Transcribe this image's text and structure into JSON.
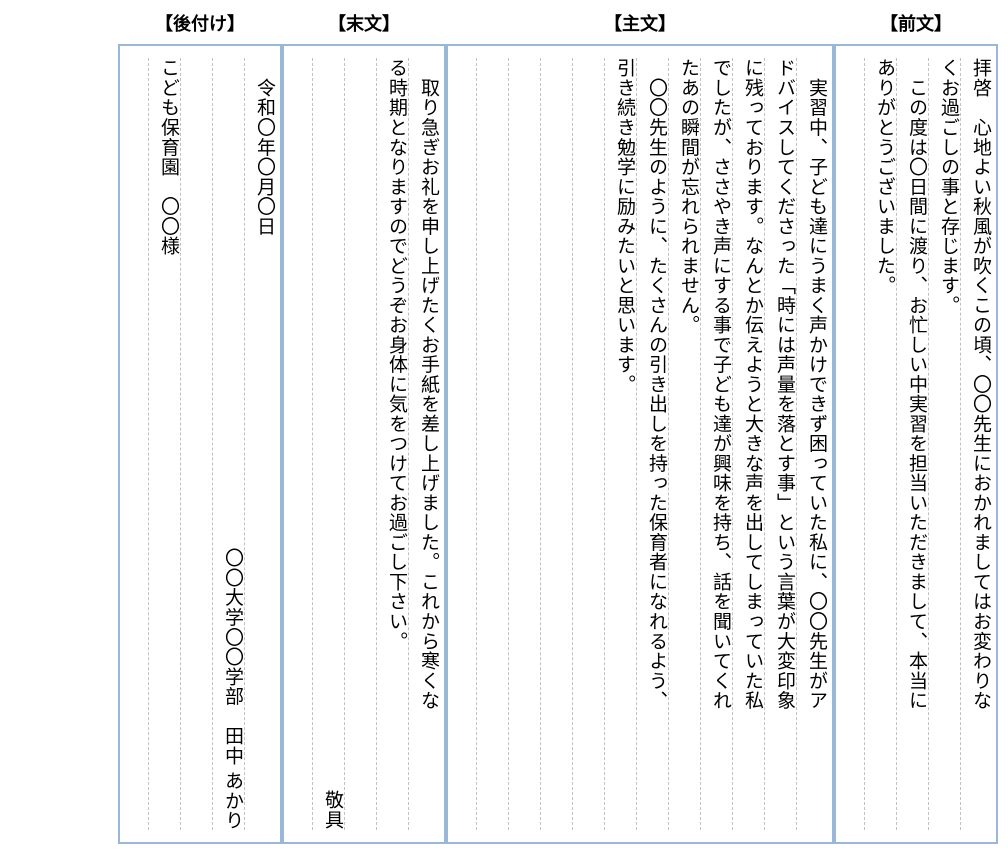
{
  "headers": {
    "zenbun": "【前文】",
    "shubun": "【主文】",
    "matsubun": "【末文】",
    "atozuke": "【後付け】"
  },
  "zenbun": {
    "lines": [
      "拝啓　心地よい秋風が吹くこの頃、〇〇先生におかれましてはお変わりな",
      "くお過ごしの事と存じます。",
      "　この度は〇日間に渡り、お忙しい中実習を担当いただきまして、本当に",
      "ありがとうございました。"
    ]
  },
  "shubun": {
    "lines": [
      "　実習中、子ども達にうまく声かけできず困っていた私に、〇〇先生がア",
      "ドバイスしてくださった「時には声量を落とす事」という言葉が大変印象",
      "に残っております。なんとか伝えようと大きな声を出してしまっていた私",
      "でしたが、ささやき声にする事で子ども達が興味を持ち、話を聞いてくれ",
      "たあの瞬間が忘れられません。",
      "　〇〇先生のように、たくさんの引き出しを持った保育者になれるよう、",
      "引き続き勉学に励みたいと思います。",
      "",
      "",
      "",
      ""
    ]
  },
  "matsubun": {
    "lines": [
      "　取り急ぎお礼を申し上げたくお手紙を差し上げました。これから寒くな",
      "る時期となりますのでどうぞお身体に気をつけてお過ごし下さい。",
      ""
    ],
    "closing": "敬具"
  },
  "atozuke": {
    "date": "　令和〇年〇月〇日",
    "sender": "〇〇大学〇〇学部　田中 あかり",
    "recipient": "こども保育園　〇〇様"
  },
  "colors": {
    "border": "#99b8d8",
    "dashed": "#c0c0c0",
    "text": "#000000",
    "background": "#ffffff"
  }
}
